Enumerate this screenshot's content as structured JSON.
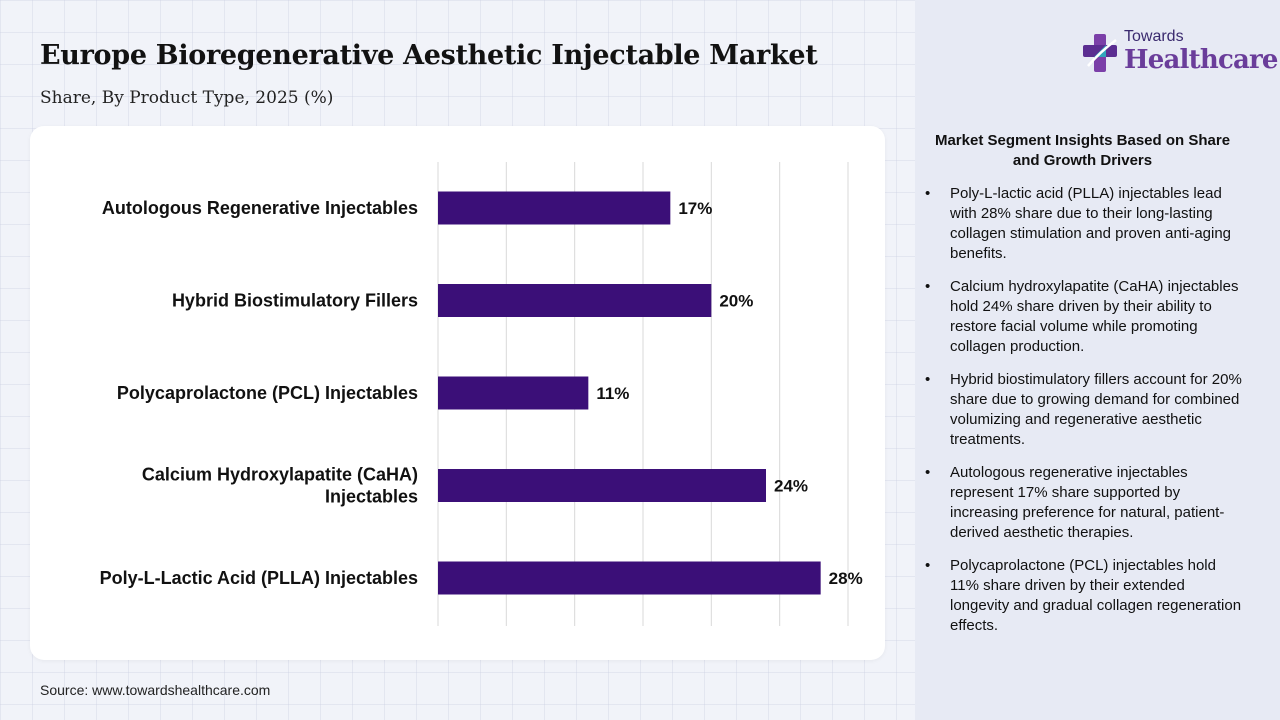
{
  "header": {
    "title": "Europe Bioregenerative Aesthetic Injectable Market",
    "subtitle": "Share, By Product Type, 2025 (%)"
  },
  "logo": {
    "small_text": "Towards",
    "big_text": "Healthcare"
  },
  "chart_data": {
    "type": "bar",
    "orientation": "horizontal",
    "categories": [
      "Autologous Regenerative Injectables",
      "Hybrid Biostimulatory Fillers",
      "Polycaprolactone (PCL) Injectables",
      "Calcium Hydroxylapatite (CaHA) Injectables",
      "Poly-L-Lactic Acid (PLLA) Injectables"
    ],
    "category_lines": [
      [
        "Autologous Regenerative Injectables"
      ],
      [
        "Hybrid Biostimulatory Fillers"
      ],
      [
        "Polycaprolactone (PCL) Injectables"
      ],
      [
        "Calcium Hydroxylapatite (CaHA)",
        "Injectables"
      ],
      [
        "Poly-L-Lactic Acid (PLLA) Injectables"
      ]
    ],
    "values": [
      17,
      20,
      11,
      24,
      28
    ],
    "data_labels": [
      "17%",
      "20%",
      "11%",
      "24%",
      "28%"
    ],
    "xlim": [
      0,
      30
    ],
    "grid": true,
    "bar_color": "#3b0f78"
  },
  "source": "Source: www.towardshealthcare.com",
  "insights": {
    "title": "Market Segment Insights Based on Share and Growth Drivers",
    "bullet_symbol": "•",
    "items": [
      "Poly-L-lactic acid (PLLA) injectables lead with 28% share due to their long-lasting collagen stimulation and proven anti-aging benefits.",
      "Calcium hydroxylapatite (CaHA) injectables hold 24% share driven by their ability to restore facial volume while promoting collagen production.",
      "Hybrid biostimulatory fillers account for 20% share due to growing demand for combined volumizing and regenerative aesthetic treatments.",
      "Autologous regenerative injectables represent 17% share supported by increasing preference for natural, patient-derived aesthetic therapies.",
      "Polycaprolactone (PCL) injectables hold 11% share driven by their extended longevity and gradual collagen regeneration effects."
    ]
  }
}
